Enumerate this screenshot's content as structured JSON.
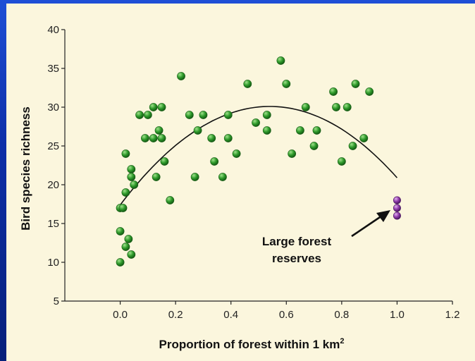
{
  "chart_data": {
    "type": "scatter",
    "title": "",
    "xlabel": "Proportion of forest within 1 km",
    "xlabel_superscript": "2",
    "ylabel": "Bird species richness",
    "xlim": [
      -0.2,
      1.2
    ],
    "ylim": [
      5,
      40
    ],
    "xticks": [
      "0.0",
      "0.2",
      "0.4",
      "0.6",
      "0.8",
      "1.0",
      "1.2"
    ],
    "xtick_values": [
      0.0,
      0.2,
      0.4,
      0.6,
      0.8,
      1.0,
      1.2
    ],
    "yticks": [
      "5",
      "10",
      "15",
      "20",
      "25",
      "30",
      "35",
      "40"
    ],
    "ytick_values": [
      5,
      10,
      15,
      20,
      25,
      30,
      35,
      40
    ],
    "grid": false,
    "colors": {
      "sites": "#2e9a2a",
      "reserves": "#8e3aa8",
      "curve": "#111111"
    },
    "series": [
      {
        "points": [
          [
            0.0,
            17
          ],
          [
            0.01,
            17
          ],
          [
            0.0,
            14
          ],
          [
            0.0,
            10
          ],
          [
            0.02,
            12
          ],
          [
            0.02,
            19
          ],
          [
            0.03,
            13
          ],
          [
            0.04,
            11
          ],
          [
            0.04,
            22
          ],
          [
            0.04,
            21
          ],
          [
            0.05,
            20
          ],
          [
            0.07,
            29
          ],
          [
            0.09,
            26
          ],
          [
            0.1,
            29
          ],
          [
            0.12,
            26
          ],
          [
            0.12,
            30
          ],
          [
            0.13,
            21
          ],
          [
            0.14,
            27
          ],
          [
            0.15,
            30
          ],
          [
            0.15,
            26
          ],
          [
            0.16,
            23
          ],
          [
            0.02,
            24
          ],
          [
            0.18,
            18
          ],
          [
            0.22,
            34
          ],
          [
            0.25,
            29
          ],
          [
            0.27,
            21
          ],
          [
            0.28,
            27
          ],
          [
            0.3,
            29
          ],
          [
            0.33,
            26
          ],
          [
            0.34,
            23
          ],
          [
            0.37,
            21
          ],
          [
            0.39,
            29
          ],
          [
            0.39,
            26
          ],
          [
            0.42,
            24
          ],
          [
            0.46,
            33
          ],
          [
            0.49,
            28
          ],
          [
            0.53,
            27
          ],
          [
            0.53,
            29
          ],
          [
            0.58,
            36
          ],
          [
            0.6,
            33
          ],
          [
            0.62,
            24
          ],
          [
            0.65,
            27
          ],
          [
            0.67,
            30
          ],
          [
            0.7,
            25
          ],
          [
            0.71,
            27
          ],
          [
            0.77,
            32
          ],
          [
            0.78,
            30
          ],
          [
            0.8,
            23
          ],
          [
            0.82,
            30
          ],
          [
            0.84,
            25
          ],
          [
            0.85,
            33
          ],
          [
            0.88,
            26
          ],
          [
            0.9,
            32
          ]
        ]
      },
      {
        "points": [
          [
            1.0,
            18
          ],
          [
            1.0,
            17
          ],
          [
            1.0,
            16
          ]
        ]
      }
    ],
    "curve": {
      "type": "quadratic_fit",
      "x_range": [
        0.0,
        1.0
      ],
      "coefficients": [
        17.4,
        47.0,
        -43.5
      ]
    },
    "annotation": {
      "lines": [
        "Large forest",
        "reserves"
      ]
    }
  }
}
